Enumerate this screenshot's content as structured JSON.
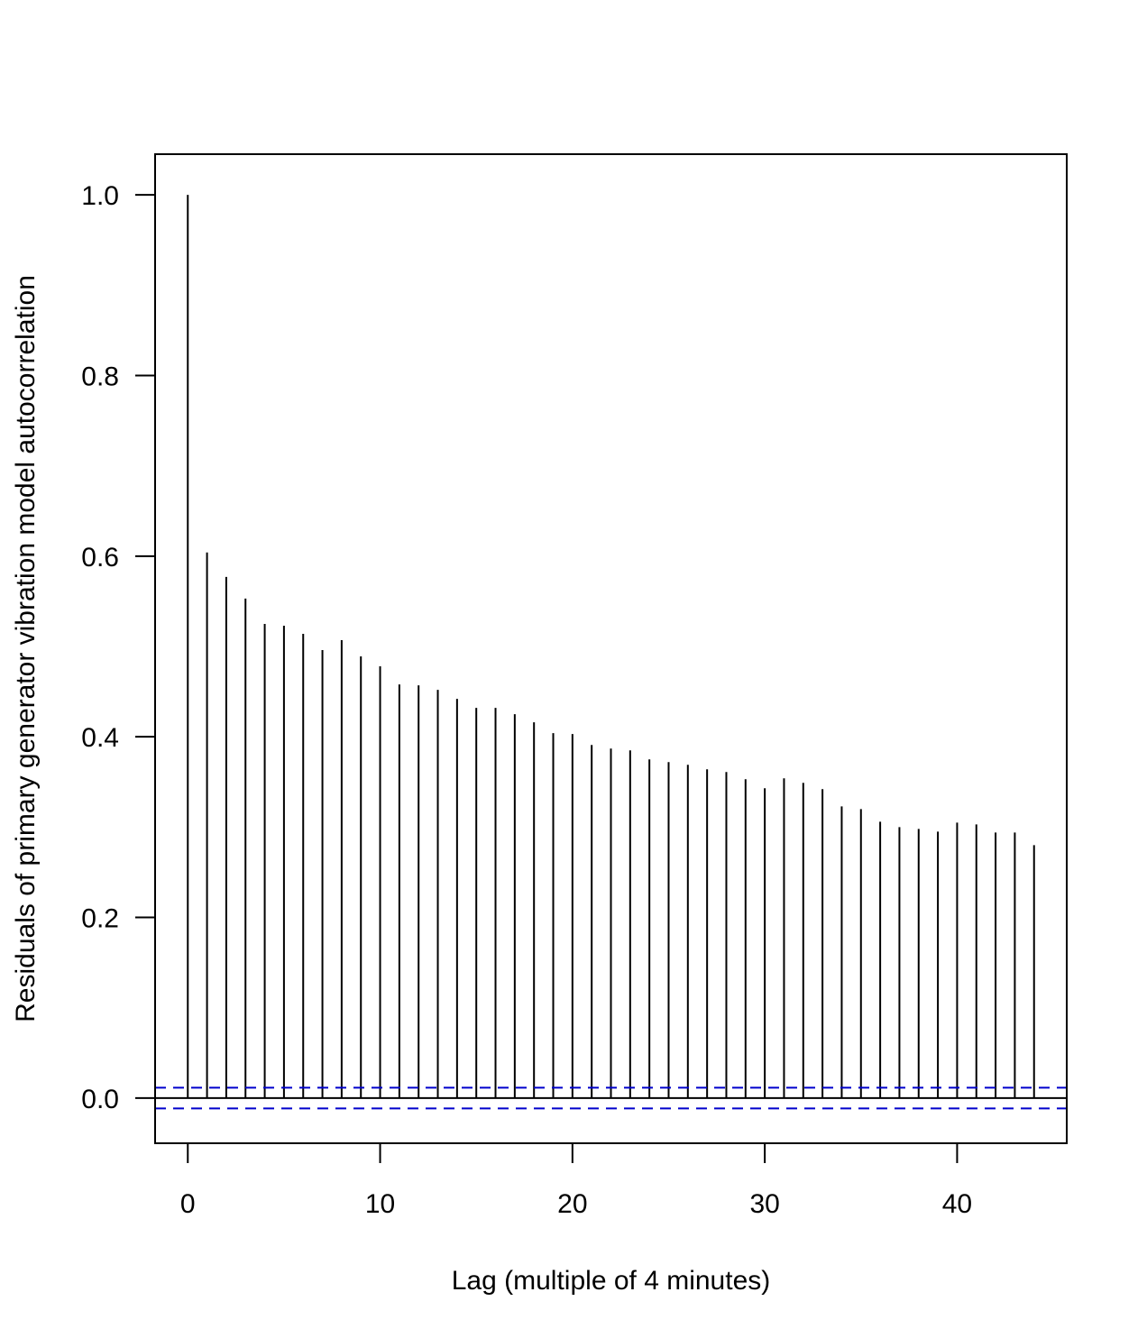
{
  "chart_data": {
    "type": "bar",
    "title": "",
    "xlabel": "Lag (multiple of 4 minutes)",
    "ylabel": "Residuals of primary generator vibration model autocorrelation",
    "x": [
      0,
      1,
      2,
      3,
      4,
      5,
      6,
      7,
      8,
      9,
      10,
      11,
      12,
      13,
      14,
      15,
      16,
      17,
      18,
      19,
      20,
      21,
      22,
      23,
      24,
      25,
      26,
      27,
      28,
      29,
      30,
      31,
      32,
      33,
      34,
      35,
      36,
      37,
      38,
      39,
      40,
      41,
      42,
      43,
      44
    ],
    "values": [
      1.0,
      0.604,
      0.577,
      0.553,
      0.525,
      0.523,
      0.514,
      0.496,
      0.507,
      0.489,
      0.478,
      0.458,
      0.457,
      0.452,
      0.442,
      0.432,
      0.432,
      0.425,
      0.416,
      0.404,
      0.403,
      0.391,
      0.387,
      0.385,
      0.375,
      0.372,
      0.369,
      0.364,
      0.361,
      0.353,
      0.343,
      0.354,
      0.349,
      0.342,
      0.323,
      0.32,
      0.306,
      0.3,
      0.298,
      0.295,
      0.305,
      0.303,
      0.294,
      0.294,
      0.28
    ],
    "xlim": [
      -1.7,
      45.7
    ],
    "ylim": [
      -0.05,
      1.045
    ],
    "xticks": [
      "0",
      "10",
      "20",
      "30",
      "40"
    ],
    "yticks": [
      "0.0",
      "0.2",
      "0.4",
      "0.6",
      "0.8",
      "1.0"
    ],
    "confidence_bound": 0.0115,
    "zero_line": true,
    "grid": false,
    "legend": "none",
    "colors": {
      "bars": "#000000",
      "confidence_lines": "#0000cc",
      "frame": "#000000"
    }
  }
}
